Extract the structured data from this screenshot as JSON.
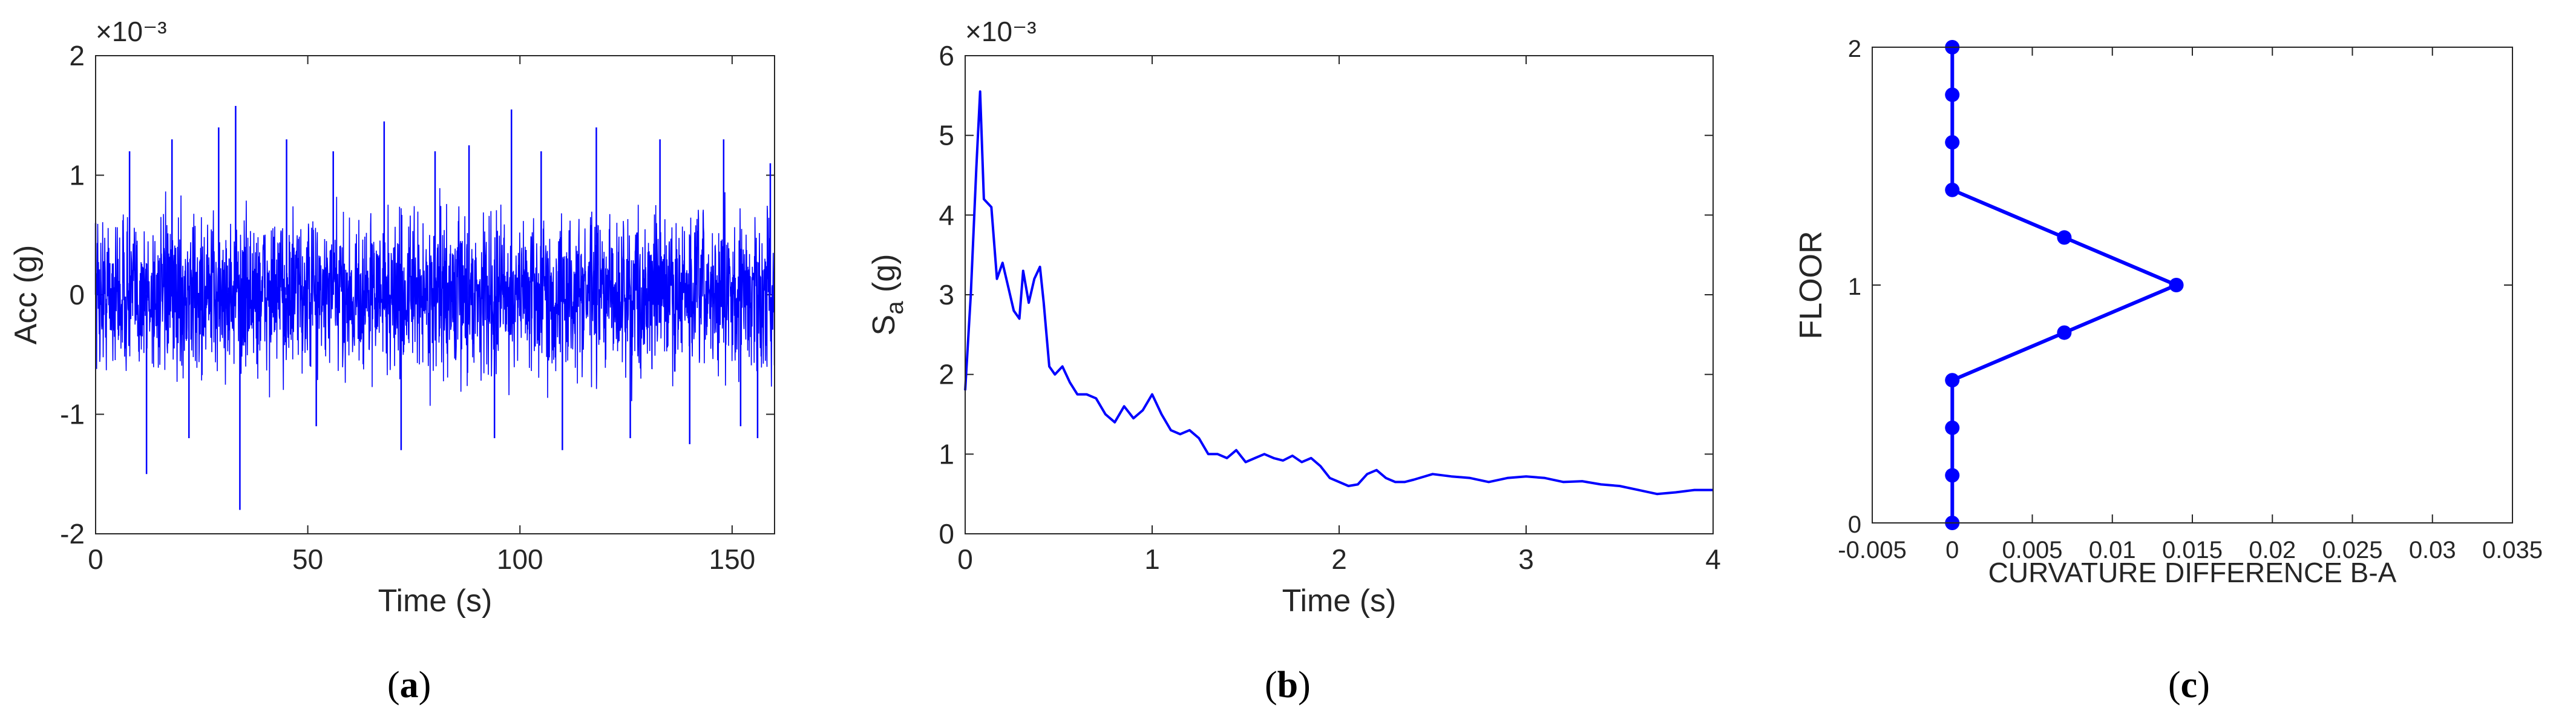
{
  "colors": {
    "series": "#0000ff",
    "axis": "#262626",
    "background": "#ffffff"
  },
  "chart_data": [
    {
      "type": "line",
      "panel": "a",
      "caption": {
        "open": "(",
        "letter": "a",
        "close": ")"
      },
      "xlabel": "Time (s)",
      "ylabel": "Acc (g)",
      "exponent_label": "×10⁻³",
      "xlim": [
        0,
        160
      ],
      "ylim": [
        -2,
        2
      ],
      "xticks": [
        0,
        50,
        100,
        150
      ],
      "xtick_labels": [
        "0",
        "50",
        "100",
        "150"
      ],
      "yticks": [
        -2,
        -1,
        0,
        1,
        2
      ],
      "ytick_labels": [
        "-2",
        "-1",
        "0",
        "1",
        "2"
      ],
      "description": "dense random acceleration record; peaks sampled",
      "series": [
        {
          "x": [
            0,
            8,
            12,
            18,
            22,
            29,
            33,
            34,
            45,
            52,
            56,
            68,
            72,
            80,
            88,
            94,
            98,
            105,
            110,
            118,
            126,
            133,
            140,
            148,
            152,
            156,
            159
          ],
          "y": [
            0.6,
            1.2,
            -1.5,
            1.3,
            -1.2,
            1.4,
            1.58,
            -1.8,
            1.3,
            -1.1,
            1.2,
            1.45,
            -1.3,
            1.2,
            1.25,
            -1.2,
            1.55,
            1.2,
            -1.3,
            1.4,
            -1.2,
            1.3,
            -1.25,
            1.3,
            -1.1,
            -1.2,
            1.1
          ]
        }
      ]
    },
    {
      "type": "line",
      "panel": "b",
      "caption": {
        "open": "(",
        "letter": "b",
        "close": ")"
      },
      "xlabel": "Time (s)",
      "ylabel_main": "S",
      "ylabel_sub": "a",
      "ylabel_unit": " (g)",
      "exponent_label": "×10⁻³",
      "xlim": [
        0,
        4
      ],
      "ylim": [
        0,
        6
      ],
      "xticks": [
        0,
        1,
        2,
        3,
        4
      ],
      "xtick_labels": [
        "0",
        "1",
        "2",
        "3",
        "4"
      ],
      "yticks": [
        0,
        1,
        2,
        3,
        4,
        5,
        6
      ],
      "ytick_labels": [
        "0",
        "1",
        "2",
        "3",
        "4",
        "5",
        "6"
      ],
      "series": [
        {
          "x": [
            0,
            0.03,
            0.06,
            0.08,
            0.1,
            0.12,
            0.14,
            0.17,
            0.2,
            0.23,
            0.26,
            0.29,
            0.31,
            0.34,
            0.37,
            0.4,
            0.42,
            0.45,
            0.48,
            0.52,
            0.56,
            0.6,
            0.65,
            0.7,
            0.75,
            0.8,
            0.85,
            0.9,
            0.95,
            1.0,
            1.05,
            1.1,
            1.15,
            1.2,
            1.25,
            1.3,
            1.35,
            1.4,
            1.45,
            1.5,
            1.55,
            1.6,
            1.65,
            1.7,
            1.75,
            1.8,
            1.85,
            1.9,
            1.95,
            2.0,
            2.05,
            2.1,
            2.15,
            2.2,
            2.25,
            2.3,
            2.35,
            2.4,
            2.5,
            2.6,
            2.7,
            2.8,
            2.9,
            3.0,
            3.1,
            3.2,
            3.3,
            3.4,
            3.5,
            3.6,
            3.7,
            3.8,
            3.9,
            4.0
          ],
          "y": [
            1.8,
            3.0,
            4.6,
            5.55,
            4.2,
            4.15,
            4.1,
            3.2,
            3.4,
            3.1,
            2.8,
            2.7,
            3.3,
            2.9,
            3.2,
            3.35,
            2.9,
            2.1,
            2.0,
            2.1,
            1.9,
            1.75,
            1.75,
            1.7,
            1.5,
            1.4,
            1.6,
            1.45,
            1.55,
            1.75,
            1.5,
            1.3,
            1.25,
            1.3,
            1.2,
            1.0,
            1.0,
            0.95,
            1.05,
            0.9,
            0.95,
            1.0,
            0.95,
            0.92,
            0.98,
            0.9,
            0.95,
            0.85,
            0.7,
            0.65,
            0.6,
            0.62,
            0.75,
            0.8,
            0.7,
            0.65,
            0.65,
            0.68,
            0.75,
            0.72,
            0.7,
            0.65,
            0.7,
            0.72,
            0.7,
            0.65,
            0.66,
            0.62,
            0.6,
            0.55,
            0.5,
            0.52,
            0.55,
            0.55
          ]
        }
      ]
    },
    {
      "type": "line",
      "panel": "c",
      "caption": {
        "open": "(",
        "letter": "c",
        "close": ")"
      },
      "xlabel": "CURVATURE DIFFERENCE B-A",
      "ylabel": "FLOOR",
      "xlim": [
        -0.005,
        0.035
      ],
      "ylim": [
        0,
        2
      ],
      "xticks": [
        -0.005,
        0,
        0.005,
        0.01,
        0.015,
        0.02,
        0.025,
        0.03,
        0.035
      ],
      "xtick_labels": [
        "-0.005",
        "0",
        "0.005",
        "0.01",
        "0.015",
        "0.02",
        "0.025",
        "0.03",
        "0.035"
      ],
      "yticks": [
        0,
        1,
        2
      ],
      "ytick_labels": [
        "0",
        "1",
        "2"
      ],
      "markers": true,
      "series": [
        {
          "x": [
            0,
            0,
            0,
            0,
            0.007,
            0.014,
            0.007,
            0,
            0,
            0,
            0
          ],
          "y": [
            0,
            0.2,
            0.4,
            0.6,
            0.8,
            1.0,
            1.2,
            1.4,
            1.6,
            1.8,
            2.0
          ]
        }
      ]
    }
  ]
}
